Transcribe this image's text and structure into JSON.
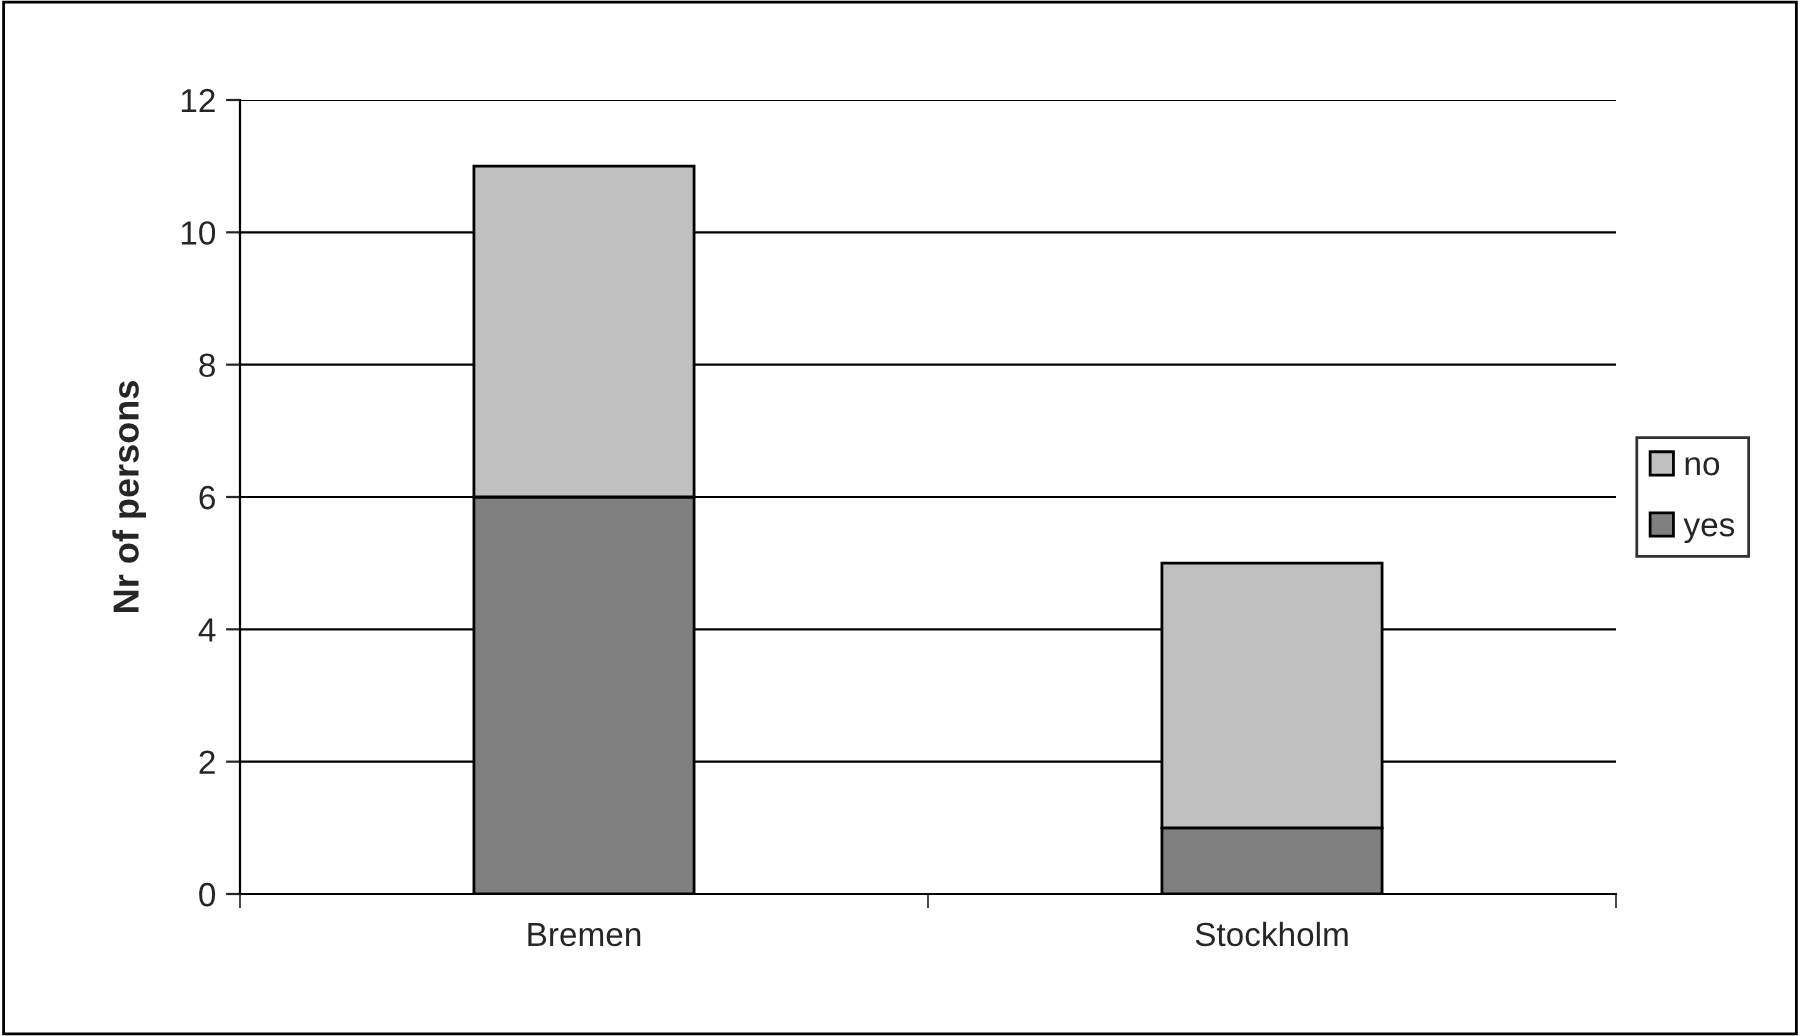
{
  "chart_data": {
    "type": "bar",
    "stacked": true,
    "ylabel": "Nr of persons",
    "categories": [
      "Bremen",
      "Stockholm"
    ],
    "series": [
      {
        "name": "yes",
        "color": "#808080",
        "values": [
          6,
          1
        ]
      },
      {
        "name": "no",
        "color": "#c0c0c0",
        "values": [
          5,
          4
        ]
      }
    ],
    "ylim": [
      0,
      12
    ],
    "yticks": [
      0,
      2,
      4,
      6,
      8,
      10,
      12
    ],
    "grid": "y",
    "legend": "right"
  }
}
